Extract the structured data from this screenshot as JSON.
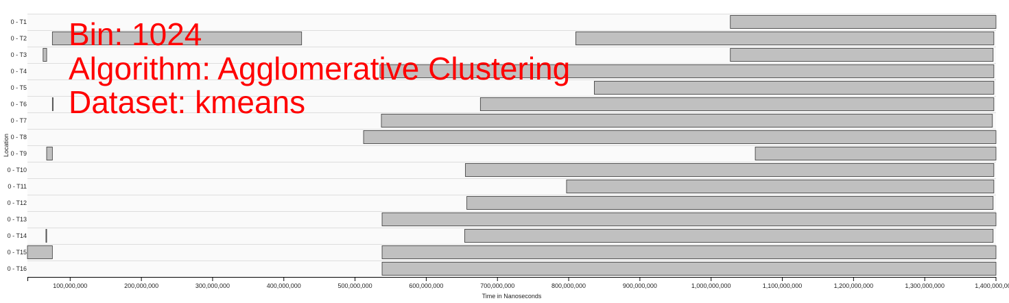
{
  "chart_data": {
    "type": "timeline",
    "xlabel": "Time in Nanoseconds",
    "ylabel": "Location",
    "xlim": [
      40000000,
      1400000000
    ],
    "x_ticks": [
      100000000,
      200000000,
      300000000,
      400000000,
      500000000,
      600000000,
      700000000,
      800000000,
      900000000,
      1000000000,
      1100000000,
      1200000000,
      1300000000,
      1400000000
    ],
    "x_tick_labels": [
      "100,000,000",
      "200,000,000",
      "300,000,000",
      "400,000,000",
      "500,000,000",
      "600,000,000",
      "700,000,000",
      "800,000,000",
      "900,000,000",
      "1,000,000,000",
      "1,100,000,000",
      "1,200,000,000",
      "1,300,000,000",
      "1,400,000,000"
    ],
    "grid": true,
    "rows": [
      {
        "label": "0 - T1",
        "intervals": [
          [
            1027000000,
            1400000000
          ]
        ]
      },
      {
        "label": "0 - T2",
        "intervals": [
          [
            75000000,
            425000000
          ],
          [
            810000000,
            1397000000
          ]
        ]
      },
      {
        "label": "0 - T3",
        "intervals": [
          [
            62000000,
            67000000
          ],
          [
            1027000000,
            1396000000
          ]
        ]
      },
      {
        "label": "0 - T4",
        "intervals": [
          [
            535000000,
            1397000000
          ]
        ]
      },
      {
        "label": "0 - T5",
        "intervals": [
          [
            836000000,
            1397000000
          ]
        ]
      },
      {
        "label": "0 - T6",
        "intervals": [
          [
            75000000,
            76000000
          ],
          [
            676000000,
            1397000000
          ]
        ]
      },
      {
        "label": "0 - T7",
        "intervals": [
          [
            537000000,
            1395000000
          ]
        ]
      },
      {
        "label": "0 - T8",
        "intervals": [
          [
            512000000,
            1400000000
          ]
        ]
      },
      {
        "label": "0 - T9",
        "intervals": [
          [
            67000000,
            75000000
          ],
          [
            1062000000,
            1400000000
          ]
        ]
      },
      {
        "label": "0 - T10",
        "intervals": [
          [
            655000000,
            1397000000
          ]
        ]
      },
      {
        "label": "0 - T11",
        "intervals": [
          [
            797000000,
            1397000000
          ]
        ]
      },
      {
        "label": "0 - T12",
        "intervals": [
          [
            657000000,
            1396000000
          ]
        ]
      },
      {
        "label": "0 - T13",
        "intervals": [
          [
            538000000,
            1400000000
          ]
        ]
      },
      {
        "label": "0 - T14",
        "intervals": [
          [
            66000000,
            67000000
          ],
          [
            654000000,
            1396000000
          ]
        ]
      },
      {
        "label": "0 - T15",
        "intervals": [
          [
            40000000,
            75000000
          ],
          [
            538000000,
            1400000000
          ]
        ]
      },
      {
        "label": "0 - T16",
        "intervals": [
          [
            538000000,
            1400000000
          ]
        ]
      }
    ],
    "bar_color": "#c0c0c0",
    "bar_stroke": "#333333",
    "annotations": [
      "Bin: 1024",
      "Algorithm: Agglomerative Clustering",
      "Dataset: kmeans"
    ],
    "annotation_color": "#ff0000"
  }
}
